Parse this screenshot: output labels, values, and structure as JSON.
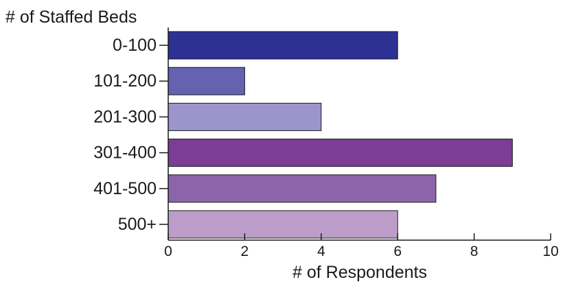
{
  "chart_data": {
    "type": "bar",
    "orientation": "horizontal",
    "title": "",
    "ylabel": "# of Staffed Beds",
    "xlabel": "# of Respondents",
    "categories": [
      "0-100",
      "101-200",
      "201-300",
      "301-400",
      "401-500",
      "500+"
    ],
    "values": [
      6,
      2,
      4,
      9,
      7,
      6
    ],
    "colors": [
      "#2d3193",
      "#6563b0",
      "#9b95cb",
      "#7b3d96",
      "#8b64a9",
      "#bc9cc9"
    ],
    "xlim": [
      0,
      10
    ],
    "xticks": [
      0,
      2,
      4,
      6,
      8,
      10
    ],
    "grid": false,
    "legend": "none"
  }
}
